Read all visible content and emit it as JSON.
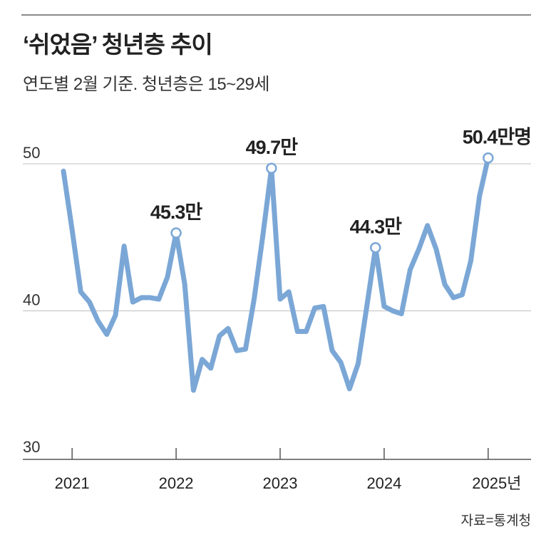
{
  "header": {
    "title": "‘쉬었음’ 청년층 추이",
    "subtitle": "연도별 2월 기준. 청년층은 15~29세",
    "source": "자료=통계청"
  },
  "colors": {
    "line": "#7ba7d6",
    "grid": "#bfbfbf",
    "axis": "#555555",
    "text": "#222222"
  },
  "chart_data": {
    "type": "line",
    "title": "‘쉬었음’ 청년층 추이",
    "subtitle": "연도별 2월 기준. 청년층은 15~29세",
    "unit": "만명",
    "ylim": [
      30,
      50
    ],
    "yticks": [
      {
        "value": 30,
        "label": "30"
      },
      {
        "value": 40,
        "label": "40"
      },
      {
        "value": 50,
        "label": "50"
      }
    ],
    "xlim": [
      0,
      50
    ],
    "xticks": [
      {
        "value": 1,
        "label": "2021"
      },
      {
        "value": 13,
        "label": "2022"
      },
      {
        "value": 25,
        "label": "2023"
      },
      {
        "value": 37,
        "label": "2024"
      },
      {
        "value": 49,
        "label": "2025년"
      }
    ],
    "series": [
      {
        "name": "쉬었음 청년층",
        "x": [
          0,
          1,
          2,
          3,
          4,
          5,
          6,
          7,
          8,
          9,
          10,
          11,
          12,
          13,
          14,
          15,
          16,
          17,
          18,
          19,
          20,
          21,
          22,
          23,
          24,
          25,
          26,
          27,
          28,
          29,
          30,
          31,
          32,
          33,
          34,
          35,
          36,
          37,
          38,
          39,
          40,
          41,
          42,
          43,
          44,
          45,
          46,
          47,
          48,
          49
        ],
        "values": [
          49.5,
          45.5,
          41.3,
          40.6,
          39.3,
          38.4,
          39.7,
          44.4,
          40.6,
          40.9,
          40.9,
          40.8,
          42.3,
          45.3,
          41.8,
          34.6,
          36.7,
          36.1,
          38.3,
          38.8,
          37.3,
          37.4,
          40.8,
          45.1,
          49.7,
          40.8,
          41.3,
          38.6,
          38.6,
          40.2,
          40.3,
          37.3,
          36.5,
          34.7,
          36.4,
          40.3,
          44.3,
          40.3,
          40.0,
          39.8,
          42.8,
          44.2,
          45.8,
          44.2,
          41.8,
          40.9,
          41.1,
          43.4,
          47.8,
          50.4
        ]
      }
    ],
    "annotations": [
      {
        "x": 13,
        "value": 45.3,
        "label": "45.3만"
      },
      {
        "x": 24,
        "value": 49.7,
        "label": "49.7만"
      },
      {
        "x": 36,
        "value": 44.3,
        "label": "44.3만"
      },
      {
        "x": 49,
        "value": 50.4,
        "label": "50.4만명"
      }
    ],
    "grid": true
  }
}
